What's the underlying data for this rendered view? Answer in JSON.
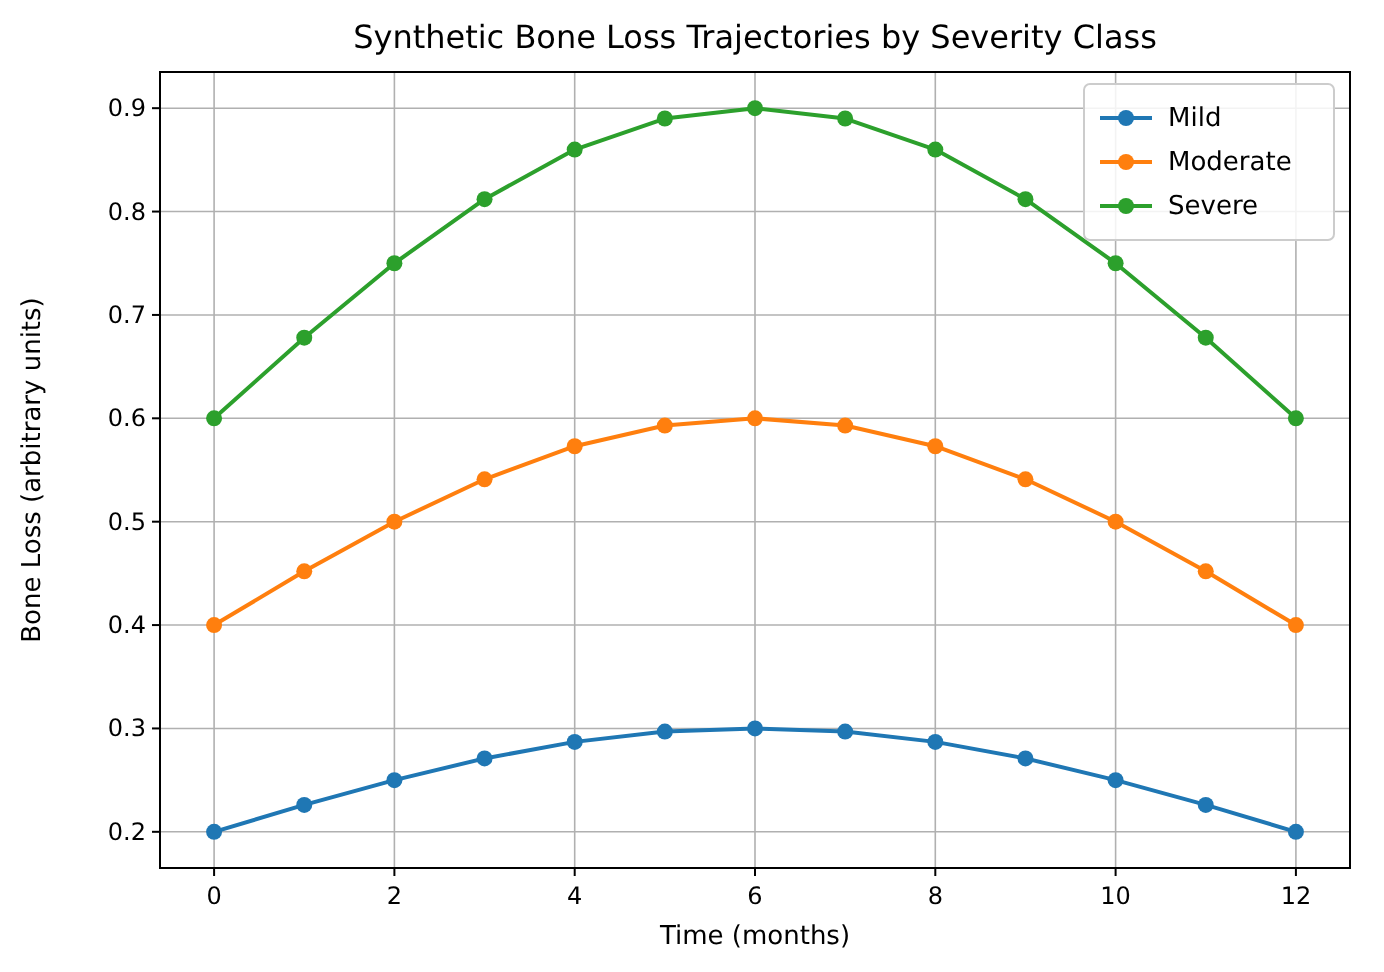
{
  "chart_data": {
    "type": "line",
    "title": "Synthetic Bone Loss Trajectories by Severity Class",
    "xlabel": "Time (months)",
    "ylabel": "Bone Loss (arbitrary units)",
    "x": [
      0,
      1,
      2,
      3,
      4,
      5,
      6,
      7,
      8,
      9,
      10,
      11,
      12
    ],
    "series": [
      {
        "name": "Mild",
        "color": "#1f77b4",
        "values": [
          0.2,
          0.226,
          0.25,
          0.271,
          0.287,
          0.297,
          0.3,
          0.297,
          0.287,
          0.271,
          0.25,
          0.226,
          0.2
        ]
      },
      {
        "name": "Moderate",
        "color": "#ff7f0e",
        "values": [
          0.4,
          0.452,
          0.5,
          0.541,
          0.573,
          0.593,
          0.6,
          0.593,
          0.573,
          0.541,
          0.5,
          0.452,
          0.4
        ]
      },
      {
        "name": "Severe",
        "color": "#2ca02c",
        "values": [
          0.6,
          0.678,
          0.75,
          0.812,
          0.86,
          0.89,
          0.9,
          0.89,
          0.86,
          0.812,
          0.75,
          0.678,
          0.6
        ]
      }
    ],
    "xlim": [
      -0.6,
      12.6
    ],
    "xticks": [
      0,
      2,
      4,
      6,
      8,
      10,
      12
    ],
    "ylim": [
      0.165,
      0.935
    ],
    "yticks": [
      0.2,
      0.3,
      0.4,
      0.5,
      0.6,
      0.7,
      0.8,
      0.9
    ],
    "grid": true,
    "legend": "top right",
    "marker": "circle",
    "line_style": "solid"
  }
}
